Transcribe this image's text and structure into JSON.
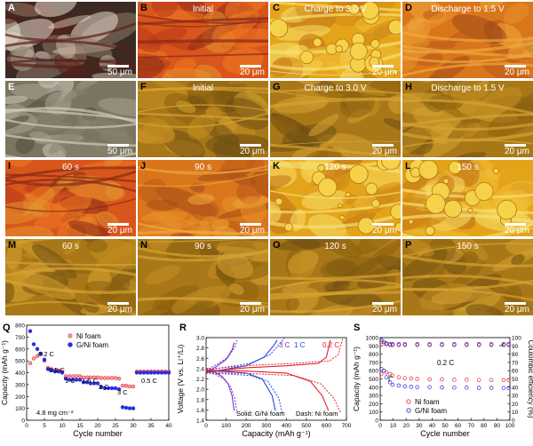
{
  "micrographs": [
    {
      "letter": "A",
      "label": "",
      "scale": "50 μm",
      "style": "dark"
    },
    {
      "letter": "B",
      "label": "Initial",
      "scale": "20 μm",
      "style": "red"
    },
    {
      "letter": "C",
      "label": "Charge to 3.0 V",
      "scale": "20 μm",
      "style": "yellow"
    },
    {
      "letter": "D",
      "label": "Discharge to 1.5 V",
      "scale": "20 μm",
      "style": "orange"
    },
    {
      "letter": "E",
      "label": "",
      "scale": "50 μm",
      "style": "gray"
    },
    {
      "letter": "F",
      "label": "Initial",
      "scale": "20 μm",
      "style": "olive"
    },
    {
      "letter": "G",
      "label": "Charge to 3.0 V",
      "scale": "20 μm",
      "style": "olive"
    },
    {
      "letter": "H",
      "label": "Discharge to 1.5 V",
      "scale": "20 μm",
      "style": "olive"
    },
    {
      "letter": "I",
      "label": "60 s",
      "scale": "20 μm",
      "style": "red"
    },
    {
      "letter": "J",
      "label": "90 s",
      "scale": "20 μm",
      "style": "orange"
    },
    {
      "letter": "K",
      "label": "120 s",
      "scale": "20 μm",
      "style": "yellow"
    },
    {
      "letter": "L",
      "label": "150 s",
      "scale": "20 μm",
      "style": "yellow"
    },
    {
      "letter": "M",
      "label": "60 s",
      "scale": "20 μm",
      "style": "olive"
    },
    {
      "letter": "N",
      "label": "90 s",
      "scale": "20 μm",
      "style": "olive"
    },
    {
      "letter": "O",
      "label": "120 s",
      "scale": "20 μm",
      "style": "olive"
    },
    {
      "letter": "P",
      "label": "150 s",
      "scale": "20 μm",
      "style": "olive"
    }
  ],
  "colors": {
    "ni_foam": "#e8303a",
    "g_ni_foam": "#2b2ddb",
    "c3": "#7b2fd0",
    "c1": "#2548e0",
    "c02": "#e0202a"
  },
  "chart_data": [
    {
      "type": "scatter",
      "panel": "Q",
      "xlabel": "Cycle number",
      "ylabel": "Capacity (mAh g⁻¹)",
      "xlim": [
        0,
        40
      ],
      "ylim": [
        0,
        800
      ],
      "xticks": [
        "0",
        "5",
        "10",
        "15",
        "20",
        "25",
        "30",
        "35",
        "40"
      ],
      "yticks": [
        "0",
        "100",
        "200",
        "300",
        "400",
        "500",
        "600",
        "700",
        "800"
      ],
      "legend": [
        "Ni foam",
        "G/Ni foam"
      ],
      "annotations": [
        "0.2 C",
        "0.5 C",
        "1 C",
        "1.5 C",
        "2 C",
        "3 C",
        "0.5 C",
        "4.8 mg cm⁻²"
      ],
      "series": [
        {
          "name": "Ni foam",
          "x": [
            1,
            2,
            3,
            4,
            5,
            6,
            7,
            8,
            9,
            10,
            11,
            12,
            13,
            14,
            15,
            16,
            17,
            18,
            19,
            20,
            21,
            22,
            23,
            24,
            25,
            26,
            27,
            28,
            29,
            30,
            31,
            32,
            33,
            34,
            35,
            36,
            37,
            38,
            39,
            40
          ],
          "values": [
            480,
            520,
            540,
            560,
            500,
            440,
            430,
            420,
            420,
            410,
            370,
            370,
            370,
            370,
            370,
            360,
            360,
            360,
            360,
            360,
            355,
            355,
            355,
            355,
            355,
            350,
            290,
            290,
            285,
            285,
            410,
            410,
            410,
            410,
            410,
            410,
            410,
            410,
            410,
            410
          ]
        },
        {
          "name": "G/Ni foam",
          "x": [
            1,
            2,
            3,
            4,
            5,
            6,
            7,
            8,
            9,
            10,
            11,
            12,
            13,
            14,
            15,
            16,
            17,
            18,
            19,
            20,
            21,
            22,
            23,
            24,
            25,
            26,
            27,
            28,
            29,
            30,
            31,
            32,
            33,
            34,
            35,
            36,
            37,
            38,
            39,
            40
          ],
          "values": [
            750,
            640,
            600,
            560,
            510,
            430,
            420,
            410,
            410,
            400,
            350,
            340,
            340,
            340,
            340,
            320,
            320,
            310,
            310,
            310,
            280,
            270,
            270,
            270,
            270,
            260,
            110,
            105,
            100,
            100,
            400,
            400,
            400,
            400,
            400,
            400,
            400,
            400,
            400,
            400
          ]
        }
      ]
    },
    {
      "type": "line",
      "panel": "R",
      "xlabel": "Capacity (mAh g⁻¹)",
      "ylabel": "Voltage (V vs. Li⁺/Li)",
      "xlim": [
        0,
        700
      ],
      "ylim": [
        1.3,
        3.0
      ],
      "xticks": [
        "0",
        "100",
        "200",
        "300",
        "400",
        "500",
        "600",
        "700"
      ],
      "yticks": [
        "1.4",
        "1.6",
        "1.8",
        "2.0",
        "2.2",
        "2.4",
        "2.6",
        "2.8",
        "3.0"
      ],
      "annotations": [
        "3 C",
        "1 C",
        "0.2 C",
        "Solid: G/Ni foam",
        "Dash: Ni foam"
      ],
      "series": [
        {
          "name": "3 C",
          "values": [
            [
              0,
              2.33
            ],
            [
              40,
              2.3
            ],
            [
              80,
              2.2
            ],
            [
              110,
              2.05
            ],
            [
              130,
              1.8
            ],
            [
              140,
              1.5
            ]
          ]
        },
        {
          "name": "3 C",
          "values": [
            [
              0,
              2.28
            ],
            [
              50,
              2.4
            ],
            [
              100,
              2.55
            ],
            [
              130,
              2.75
            ],
            [
              140,
              2.9
            ]
          ]
        },
        {
          "name": "1 C",
          "values": [
            [
              0,
              2.32
            ],
            [
              100,
              2.3
            ],
            [
              200,
              2.27
            ],
            [
              280,
              2.15
            ],
            [
              330,
              1.8
            ],
            [
              345,
              1.5
            ]
          ]
        },
        {
          "name": "1 C",
          "values": [
            [
              0,
              2.28
            ],
            [
              100,
              2.35
            ],
            [
              200,
              2.42
            ],
            [
              290,
              2.6
            ],
            [
              340,
              2.85
            ],
            [
              355,
              2.95
            ]
          ]
        },
        {
          "name": "0.2 C",
          "values": [
            [
              0,
              2.33
            ],
            [
              200,
              2.31
            ],
            [
              400,
              2.27
            ],
            [
              520,
              2.1
            ],
            [
              580,
              1.8
            ],
            [
              610,
              1.5
            ]
          ]
        },
        {
          "name": "0.2 C",
          "values": [
            [
              0,
              2.3
            ],
            [
              200,
              2.38
            ],
            [
              400,
              2.42
            ],
            [
              560,
              2.47
            ],
            [
              600,
              2.6
            ],
            [
              620,
              2.95
            ]
          ]
        }
      ]
    },
    {
      "type": "scatter",
      "panel": "S",
      "xlabel": "Cycle number",
      "ylabel": "Capacity (mAh g⁻¹)",
      "ylabel2": "Coulombic efficiency (%)",
      "xlim": [
        0,
        105
      ],
      "ylim": [
        0,
        1000
      ],
      "ylim2": [
        0,
        100
      ],
      "xticks": [
        "0",
        "10",
        "20",
        "30",
        "40",
        "50",
        "60",
        "70",
        "80",
        "90",
        "100"
      ],
      "yticks": [
        "0",
        "100",
        "200",
        "300",
        "400",
        "500",
        "600",
        "700",
        "800",
        "900",
        "1000"
      ],
      "yticks2": [
        "0",
        "10",
        "20",
        "30",
        "40",
        "50",
        "60",
        "70",
        "80",
        "90",
        "100"
      ],
      "legend": [
        "Ni foam",
        "G/Ni foam"
      ],
      "annotations": [
        "0.2 C"
      ],
      "series": [
        {
          "name": "Ni foam",
          "kind": "capacity",
          "x": [
            1,
            3,
            5,
            8,
            10,
            15,
            20,
            25,
            30,
            40,
            50,
            60,
            70,
            80,
            90,
            100,
            104
          ],
          "values": [
            560,
            600,
            580,
            560,
            540,
            520,
            510,
            505,
            500,
            495,
            495,
            490,
            490,
            488,
            488,
            485,
            485
          ]
        },
        {
          "name": "G/Ni foam",
          "kind": "capacity",
          "x": [
            1,
            3,
            5,
            8,
            10,
            15,
            20,
            25,
            30,
            40,
            50,
            60,
            70,
            80,
            90,
            100,
            104
          ],
          "values": [
            620,
            600,
            520,
            460,
            430,
            420,
            410,
            405,
            400,
            400,
            398,
            396,
            395,
            393,
            392,
            390,
            390
          ]
        },
        {
          "name": "Ni foam",
          "kind": "efficiency",
          "x": [
            1,
            3,
            5,
            8,
            10,
            15,
            20,
            30,
            40,
            50,
            60,
            70,
            80,
            90,
            100,
            104
          ],
          "values": [
            95,
            93,
            92,
            91,
            91,
            91,
            91,
            91,
            91,
            91,
            91,
            91,
            91,
            91,
            91,
            91
          ]
        },
        {
          "name": "G/Ni foam",
          "kind": "efficiency",
          "x": [
            1,
            3,
            5,
            8,
            10,
            15,
            20,
            30,
            40,
            50,
            60,
            70,
            80,
            90,
            100,
            104
          ],
          "values": [
            97,
            95,
            93,
            92,
            92,
            92,
            92,
            92,
            92,
            92,
            92,
            92,
            92,
            92,
            92,
            92
          ]
        }
      ]
    }
  ]
}
